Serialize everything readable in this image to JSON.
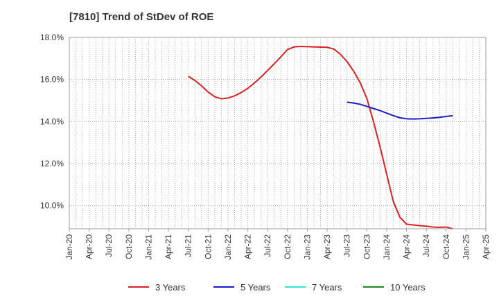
{
  "chart_data": {
    "type": "line",
    "title": "[7810]  Trend of StDev of ROE",
    "xlabel": "",
    "ylabel": "",
    "ylim": [
      8.9,
      18.0
    ],
    "yticks": [
      10.0,
      12.0,
      14.0,
      16.0,
      18.0
    ],
    "ytick_labels": [
      "10.0%",
      "12.0%",
      "14.0%",
      "16.0%",
      "18.0%"
    ],
    "xlim": [
      0,
      63
    ],
    "xticks": [
      0,
      3,
      6,
      9,
      12,
      15,
      18,
      21,
      24,
      27,
      30,
      33,
      36,
      39,
      42,
      45,
      48,
      51,
      54,
      57,
      60,
      63
    ],
    "xtick_labels": [
      "Jan-20",
      "Apr-20",
      "Jul-20",
      "Oct-20",
      "Jan-21",
      "Apr-21",
      "Jul-21",
      "Oct-21",
      "Jan-22",
      "Apr-22",
      "Jul-22",
      "Oct-22",
      "Jan-23",
      "Apr-23",
      "Jul-23",
      "Oct-23",
      "Jan-24",
      "Apr-24",
      "Jul-24",
      "Oct-24",
      "Jan-25",
      "Apr-25"
    ],
    "grid": true,
    "legend_position": "bottom",
    "series": [
      {
        "name": "3 Years",
        "color": "#dd1f1f",
        "x": [
          18,
          19,
          20,
          21,
          22,
          23,
          24,
          25,
          26,
          27,
          28,
          29,
          30,
          31,
          32,
          33,
          34,
          35,
          36,
          37,
          38,
          39,
          40,
          41,
          42,
          43,
          44,
          45,
          46,
          47,
          48,
          49,
          50,
          51,
          52,
          53,
          54,
          55,
          56,
          57,
          58,
          59,
          60
        ],
        "y": [
          16.15,
          15.95,
          15.7,
          15.4,
          15.18,
          15.08,
          15.12,
          15.22,
          15.38,
          15.58,
          15.83,
          16.12,
          16.43,
          16.75,
          17.08,
          17.42,
          17.55,
          17.57,
          17.56,
          17.55,
          17.54,
          17.53,
          17.45,
          17.2,
          16.85,
          16.4,
          15.85,
          15.1,
          14.0,
          12.8,
          11.5,
          10.2,
          9.45,
          9.12,
          9.08,
          9.05,
          9.02,
          8.98,
          8.97,
          8.98,
          8.9,
          null,
          null
        ]
      },
      {
        "name": "5 Years",
        "color": "#1a1ac8",
        "x": [
          42,
          43,
          44,
          45,
          46,
          47,
          48,
          49,
          50,
          51,
          52,
          53,
          54,
          55,
          56,
          57,
          58,
          59,
          60
        ],
        "y": [
          14.92,
          14.88,
          14.82,
          14.72,
          14.62,
          14.52,
          14.4,
          14.28,
          14.18,
          14.13,
          14.12,
          14.13,
          14.15,
          14.17,
          14.2,
          14.24,
          14.28,
          null,
          null
        ]
      },
      {
        "name": "7 Years",
        "color": "#33e0e0",
        "x": [],
        "y": []
      },
      {
        "name": "10 Years",
        "color": "#1e8a1e",
        "x": [],
        "y": []
      }
    ]
  }
}
